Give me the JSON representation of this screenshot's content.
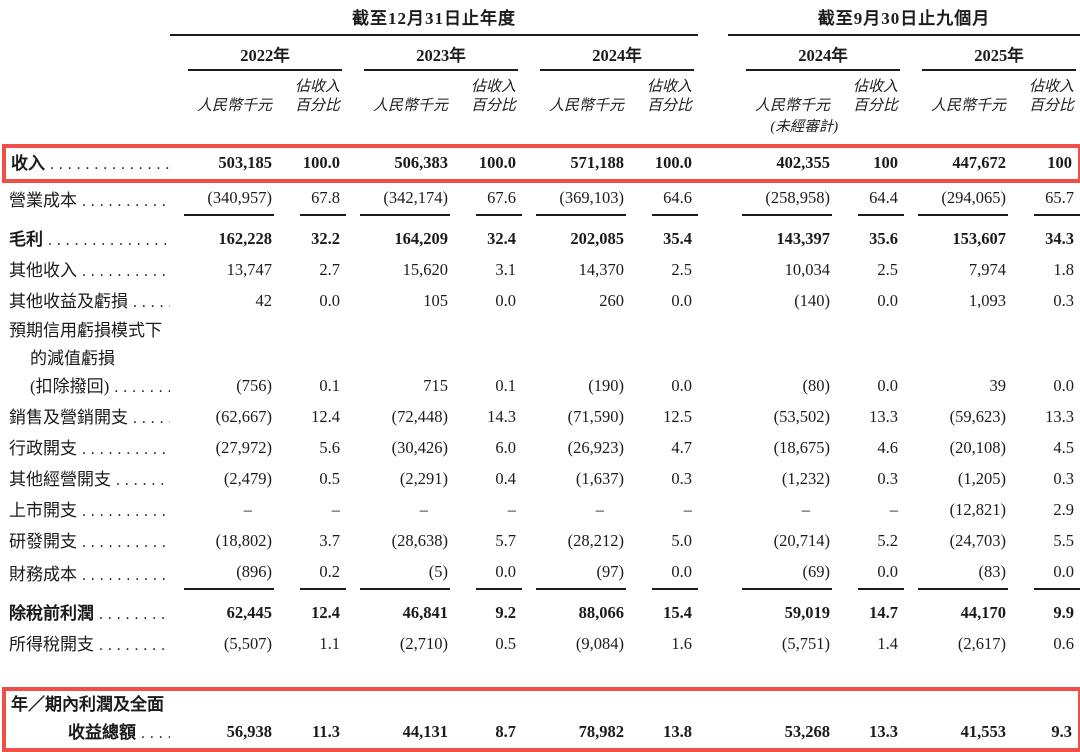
{
  "colors": {
    "highlight_box": "#ef4e49",
    "rule_line": "#1c1c1c",
    "text": "#1b1b1b"
  },
  "table": {
    "period_groups": [
      {
        "title": "截至12月31日止年度"
      },
      {
        "title": "截至9月30日止九個月"
      }
    ],
    "years": [
      "2022年",
      "2023年",
      "2024年",
      "2024年",
      "2025年"
    ],
    "col_headers": {
      "amount": "人民幣千元",
      "pct_line1": "佔收入",
      "pct_line2": "百分比"
    },
    "unaudited_note": "(未經審計)",
    "rows": [
      {
        "label_lines": [
          "收入"
        ],
        "bold": true,
        "highlight": true,
        "values": [
          "503,185",
          "100.0",
          "506,383",
          "100.0",
          "571,188",
          "100.0",
          "402,355",
          "100",
          "447,672",
          "100"
        ]
      },
      {
        "label_lines": [
          "營業成本"
        ],
        "rule_below": true,
        "values": [
          "(340,957)",
          "67.8",
          "(342,174)",
          "67.6",
          "(369,103)",
          "64.6",
          "(258,958)",
          "64.4",
          "(294,065)",
          "65.7"
        ]
      },
      {
        "label_lines": [
          "毛利"
        ],
        "bold": true,
        "gap_above": true,
        "values": [
          "162,228",
          "32.2",
          "164,209",
          "32.4",
          "202,085",
          "35.4",
          "143,397",
          "35.6",
          "153,607",
          "34.3"
        ]
      },
      {
        "label_lines": [
          "其他收入"
        ],
        "values": [
          "13,747",
          "2.7",
          "15,620",
          "3.1",
          "14,370",
          "2.5",
          "10,034",
          "2.5",
          "7,974",
          "1.8"
        ]
      },
      {
        "label_lines": [
          "其他收益及虧損"
        ],
        "values": [
          "42",
          "0.0",
          "105",
          "0.0",
          "260",
          "0.0",
          "(140)",
          "0.0",
          "1,093",
          "0.3"
        ]
      },
      {
        "label_lines": [
          "預期信用虧損模式下",
          "的減值虧損",
          "(扣除撥回)"
        ],
        "indents": [
          0,
          1,
          1
        ],
        "values": [
          "(756)",
          "0.1",
          "715",
          "0.1",
          "(190)",
          "0.0",
          "(80)",
          "0.0",
          "39",
          "0.0"
        ]
      },
      {
        "label_lines": [
          "銷售及營銷開支"
        ],
        "values": [
          "(62,667)",
          "12.4",
          "(72,448)",
          "14.3",
          "(71,590)",
          "12.5",
          "(53,502)",
          "13.3",
          "(59,623)",
          "13.3"
        ]
      },
      {
        "label_lines": [
          "行政開支"
        ],
        "values": [
          "(27,972)",
          "5.6",
          "(30,426)",
          "6.0",
          "(26,923)",
          "4.7",
          "(18,675)",
          "4.6",
          "(20,108)",
          "4.5"
        ]
      },
      {
        "label_lines": [
          "其他經營開支"
        ],
        "values": [
          "(2,479)",
          "0.5",
          "(2,291)",
          "0.4",
          "(1,637)",
          "0.3",
          "(1,232)",
          "0.3",
          "(1,205)",
          "0.3"
        ]
      },
      {
        "label_lines": [
          "上市開支"
        ],
        "values": [
          "–",
          "–",
          "–",
          "–",
          "–",
          "–",
          "–",
          "–",
          "(12,821)",
          "2.9"
        ]
      },
      {
        "label_lines": [
          "研發開支"
        ],
        "values": [
          "(18,802)",
          "3.7",
          "(28,638)",
          "5.7",
          "(28,212)",
          "5.0",
          "(20,714)",
          "5.2",
          "(24,703)",
          "5.5"
        ]
      },
      {
        "label_lines": [
          "財務成本"
        ],
        "rule_below": true,
        "values": [
          "(896)",
          "0.2",
          "(5)",
          "0.0",
          "(97)",
          "0.0",
          "(69)",
          "0.0",
          "(83)",
          "0.0"
        ]
      },
      {
        "label_lines": [
          "除稅前利潤"
        ],
        "bold": true,
        "gap_above": true,
        "values": [
          "62,445",
          "12.4",
          "46,841",
          "9.2",
          "88,066",
          "15.4",
          "59,019",
          "14.7",
          "44,170",
          "9.9"
        ]
      },
      {
        "label_lines": [
          "所得稅開支"
        ],
        "values": [
          "(5,507)",
          "1.1",
          "(2,710)",
          "0.5",
          "(9,084)",
          "1.6",
          "(5,751)",
          "1.4",
          "(2,617)",
          "0.6"
        ]
      },
      {
        "label_lines": [
          "年／期內利潤及全面",
          "收益總額"
        ],
        "indents": [
          0,
          2
        ],
        "bold": true,
        "highlight": true,
        "spacer_above": true,
        "values": [
          "56,938",
          "11.3",
          "44,131",
          "8.7",
          "78,982",
          "13.8",
          "53,268",
          "13.3",
          "41,553",
          "9.3"
        ]
      }
    ]
  }
}
